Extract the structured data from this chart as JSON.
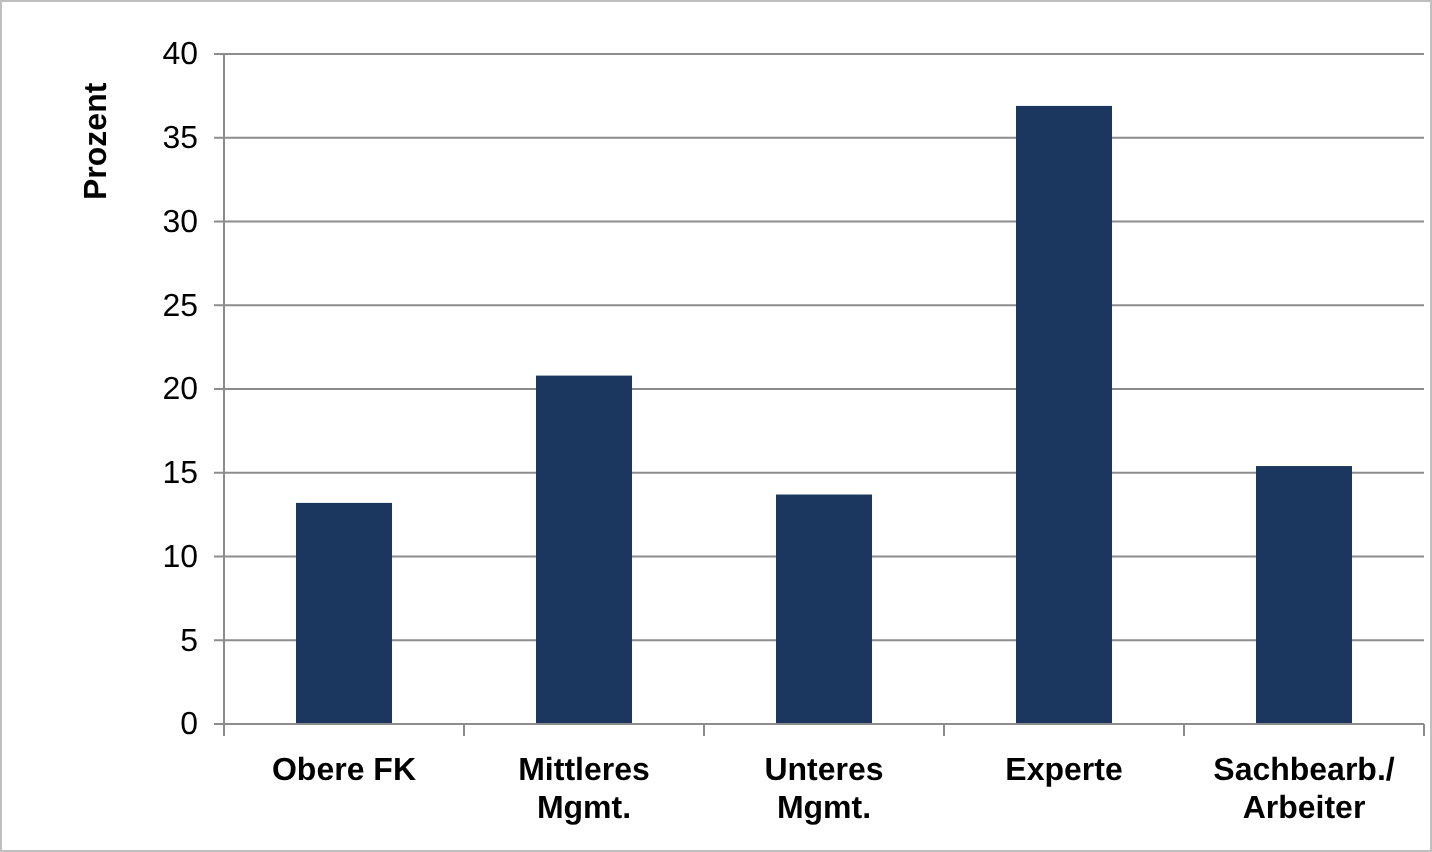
{
  "chart_data": {
    "type": "bar",
    "ylabel": "Prozent",
    "categories": [
      "Obere FK",
      "Mittleres\nMgmt.",
      "Unteres\nMgmt.",
      "Experte",
      "Sachbearb./\nArbeiter"
    ],
    "values": [
      13.2,
      20.8,
      13.7,
      36.9,
      15.4
    ],
    "color": "#1b375f",
    "ylim": [
      0,
      40
    ],
    "yticks": [
      0,
      5,
      10,
      15,
      20,
      25,
      30,
      35,
      40
    ],
    "grid": "y"
  }
}
